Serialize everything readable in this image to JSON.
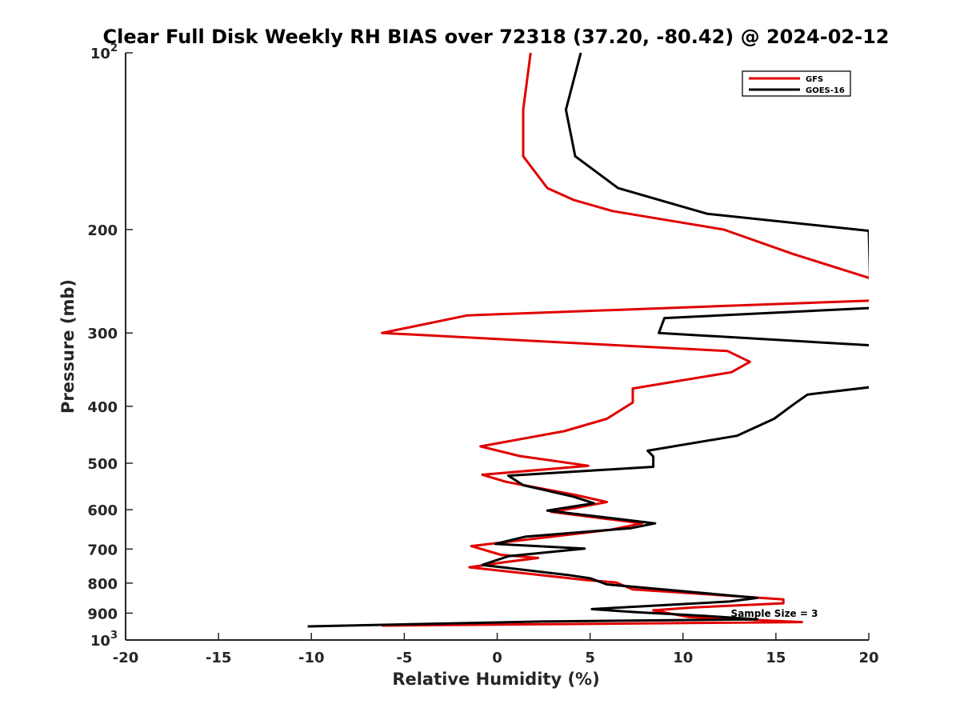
{
  "chart_data": {
    "type": "line",
    "title": "Clear Full Disk Weekly RH BIAS over 72318 (37.20, -80.42) @ 2024-02-12",
    "xlabel": "Relative Humidity (%)",
    "ylabel": "Pressure (mb)",
    "xlim": [
      -20,
      20
    ],
    "ylim": [
      100,
      1000
    ],
    "y_scale": "log",
    "y_reversed": true,
    "grid": false,
    "legend_position": "top-right",
    "x_ticks": [
      {
        "value": -20,
        "label": "-20"
      },
      {
        "value": -15,
        "label": "-15"
      },
      {
        "value": -10,
        "label": "-10"
      },
      {
        "value": -5,
        "label": "-5"
      },
      {
        "value": 0,
        "label": "0"
      },
      {
        "value": 5,
        "label": "5"
      },
      {
        "value": 10,
        "label": "10"
      },
      {
        "value": 15,
        "label": "15"
      },
      {
        "value": 20,
        "label": "20"
      }
    ],
    "y_ticks": [
      {
        "value": 100,
        "base": "10",
        "exp": "2"
      },
      {
        "value": 200,
        "label": "200"
      },
      {
        "value": 300,
        "label": "300"
      },
      {
        "value": 400,
        "label": "400"
      },
      {
        "value": 500,
        "label": "500"
      },
      {
        "value": 600,
        "label": "600"
      },
      {
        "value": 700,
        "label": "700"
      },
      {
        "value": 800,
        "label": "800"
      },
      {
        "value": 900,
        "label": "900"
      },
      {
        "value": 1000,
        "base": "10",
        "exp": "3"
      }
    ],
    "series": [
      {
        "name": "GFS",
        "color": "#e00000",
        "points": [
          [
            1.8,
            100
          ],
          [
            1.4,
            125
          ],
          [
            1.4,
            150
          ],
          [
            2.7,
            170
          ],
          [
            4.1,
            178
          ],
          [
            6.2,
            186
          ],
          [
            12.2,
            200
          ],
          [
            15.9,
            220
          ],
          [
            20.4,
            244
          ],
          [
            20.4,
            264
          ],
          [
            -1.6,
            280
          ],
          [
            -6.2,
            300
          ],
          [
            12.4,
            322
          ],
          [
            13.6,
            336
          ],
          [
            12.6,
            350
          ],
          [
            7.3,
            373
          ],
          [
            7.3,
            394
          ],
          [
            5.9,
            420
          ],
          [
            3.6,
            441
          ],
          [
            -0.9,
            468
          ],
          [
            1.2,
            486
          ],
          [
            4.9,
            505
          ],
          [
            -0.8,
            523
          ],
          [
            0.5,
            538
          ],
          [
            4.2,
            566
          ],
          [
            5.9,
            582
          ],
          [
            4.2,
            596
          ],
          [
            2.9,
            605
          ],
          [
            7.8,
            633
          ],
          [
            6.1,
            649
          ],
          [
            -1.4,
            692
          ],
          [
            0.2,
            716
          ],
          [
            2.2,
            725
          ],
          [
            0.4,
            737
          ],
          [
            -1.5,
            752
          ],
          [
            4.7,
            790
          ],
          [
            6.4,
            798
          ],
          [
            7.3,
            820
          ],
          [
            13.5,
            845
          ],
          [
            15.4,
            853
          ],
          [
            15.4,
            866
          ],
          [
            10.6,
            880
          ],
          [
            8.4,
            890
          ],
          [
            10.3,
            914
          ],
          [
            16.4,
            932
          ],
          [
            -6.2,
            945
          ]
        ]
      },
      {
        "name": "GOES-16",
        "color": "#000000",
        "points": [
          [
            4.5,
            100
          ],
          [
            3.7,
            125
          ],
          [
            4.2,
            150
          ],
          [
            6.5,
            170
          ],
          [
            11.3,
            188
          ],
          [
            20.0,
            201
          ],
          [
            20.1,
            272
          ],
          [
            9.0,
            283
          ],
          [
            8.7,
            300
          ],
          [
            20.2,
            315
          ],
          [
            20.4,
            370
          ],
          [
            16.7,
            382
          ],
          [
            15.9,
            398
          ],
          [
            14.9,
            420
          ],
          [
            12.9,
            449
          ],
          [
            8.1,
            476
          ],
          [
            8.4,
            487
          ],
          [
            8.4,
            507
          ],
          [
            0.6,
            525
          ],
          [
            1.4,
            545
          ],
          [
            2.5,
            555
          ],
          [
            4.1,
            570
          ],
          [
            5.2,
            585
          ],
          [
            2.7,
            602
          ],
          [
            8.5,
            633
          ],
          [
            7.2,
            645
          ],
          [
            1.5,
            667
          ],
          [
            -0.1,
            686
          ],
          [
            4.7,
            699
          ],
          [
            0.6,
            720
          ],
          [
            -0.8,
            745
          ],
          [
            3.8,
            775
          ],
          [
            5.0,
            785
          ],
          [
            5.9,
            804
          ],
          [
            14.0,
            848
          ],
          [
            12.5,
            860
          ],
          [
            5.1,
            886
          ],
          [
            7.5,
            897
          ],
          [
            11.2,
            910
          ],
          [
            14.0,
            922
          ],
          [
            2.4,
            930
          ],
          [
            -10.2,
            948
          ]
        ]
      }
    ],
    "annotation": "Sample Size = 3"
  }
}
